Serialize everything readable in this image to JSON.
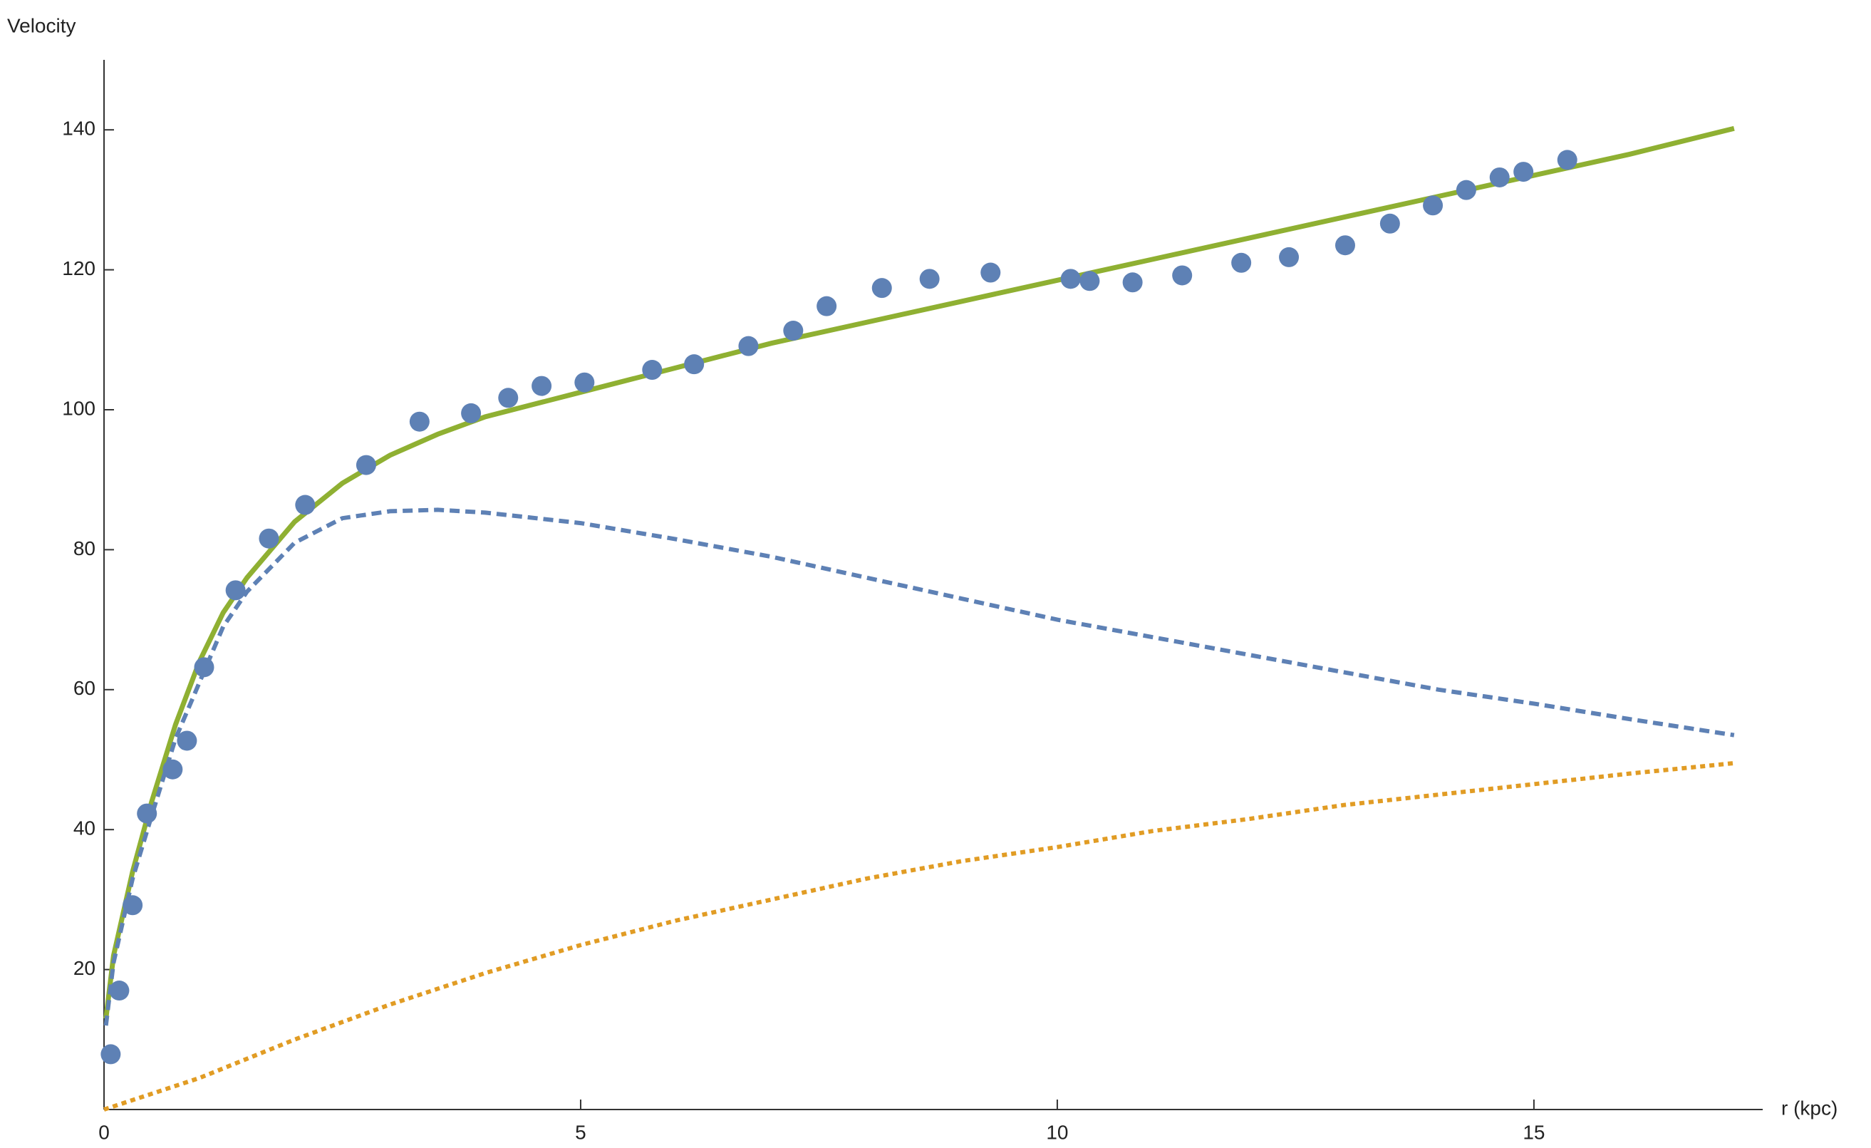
{
  "chart_data": {
    "type": "scatter_line",
    "xlabel": "r (kpc)",
    "ylabel": "Velocity",
    "xlim": [
      0,
      17.4
    ],
    "ylim": [
      0,
      150
    ],
    "xticks": [
      0,
      5,
      10,
      15
    ],
    "yticks": [
      20,
      40,
      60,
      80,
      100,
      120,
      140
    ],
    "series": [
      {
        "type": "scatter",
        "color": "#5e81b5",
        "x": [
          0.07,
          0.16,
          0.3,
          0.45,
          0.72,
          0.87,
          1.05,
          1.38,
          1.73,
          2.11,
          2.75,
          3.31,
          3.85,
          4.24,
          4.59,
          5.04,
          5.75,
          6.19,
          6.76,
          7.23,
          7.58,
          8.16,
          8.66,
          9.3,
          10.14,
          10.34,
          10.79,
          11.31,
          11.93,
          12.43,
          13.02,
          13.49,
          13.94,
          14.29,
          14.64,
          14.89,
          15.35
        ],
        "values": [
          7.9,
          17,
          29.2,
          42.3,
          48.6,
          52.7,
          63.2,
          74.2,
          81.6,
          86.4,
          92.1,
          98.3,
          99.5,
          101.7,
          103.4,
          103.9,
          105.7,
          106.5,
          109.1,
          111.3,
          114.8,
          117.4,
          118.7,
          119.6,
          118.7,
          118.4,
          118.2,
          119.2,
          121,
          121.8,
          123.5,
          126.6,
          129.2,
          131.4,
          133.2,
          134,
          135.7
        ]
      },
      {
        "type": "line",
        "style": "solid",
        "color": "#8fb032",
        "x": [
          0.02,
          0.1,
          0.2,
          0.3,
          0.5,
          0.75,
          1,
          1.25,
          1.5,
          2,
          2.5,
          3,
          3.5,
          4,
          5,
          6,
          7,
          8,
          9,
          10,
          11,
          12,
          13,
          14,
          15,
          16,
          17.1
        ],
        "values": [
          13,
          22,
          28,
          34,
          44,
          55,
          64,
          71,
          76,
          84,
          89.5,
          93.5,
          96.5,
          99,
          102.5,
          106,
          109.5,
          112.5,
          115.5,
          118.5,
          121.5,
          124.5,
          127.5,
          130.5,
          133.5,
          136.5,
          140.2
        ]
      },
      {
        "type": "line",
        "style": "dashed",
        "color": "#5e81b5",
        "x": [
          0.02,
          0.1,
          0.2,
          0.3,
          0.5,
          0.75,
          1,
          1.25,
          1.5,
          2,
          2.5,
          3,
          3.5,
          4,
          5,
          6,
          7,
          8,
          9,
          10,
          11,
          12,
          13,
          14,
          15,
          16,
          17.1
        ],
        "values": [
          12,
          21,
          27,
          33,
          42,
          53,
          61,
          69,
          74,
          81,
          84.5,
          85.5,
          85.7,
          85.3,
          83.8,
          81.5,
          79,
          76,
          73,
          70,
          67.5,
          65,
          62.5,
          60,
          58,
          55.8,
          53.5
        ]
      },
      {
        "type": "line",
        "style": "dotted",
        "color": "#e19c24",
        "x": [
          0,
          1,
          2,
          3,
          4,
          5,
          6,
          7,
          8,
          9,
          10,
          11,
          12,
          13,
          14,
          15,
          16,
          17.1
        ],
        "values": [
          0,
          4.5,
          10,
          15,
          19.5,
          23.5,
          27,
          30,
          33,
          35.5,
          37.5,
          39.8,
          41.5,
          43.5,
          45,
          46.5,
          48,
          49.5
        ]
      }
    ]
  }
}
